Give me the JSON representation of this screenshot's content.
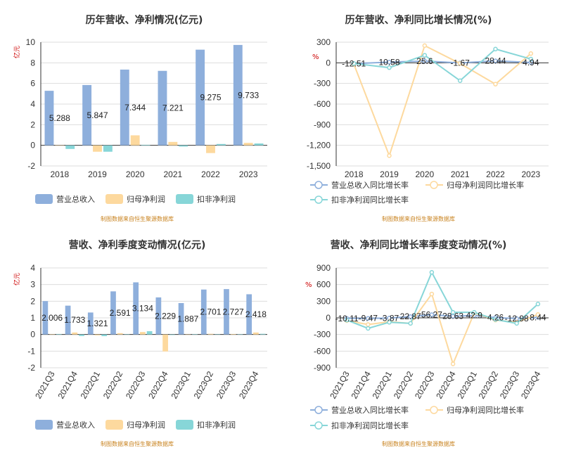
{
  "colors": {
    "revenue": "#8eafdc",
    "net_profit": "#fdd99e",
    "deducted_profit": "#87d6d8",
    "axis": "#333333",
    "grid": "#dddddd"
  },
  "source_note": "制图数据来自恒生聚源数据库",
  "chart_data": [
    {
      "id": "annual_amounts",
      "type": "bar",
      "title": "历年营收、净利情况(亿元)",
      "ylabel": "亿元",
      "ylim": [
        -2,
        10
      ],
      "yticks": [
        10,
        8,
        6,
        4,
        2,
        0,
        -2
      ],
      "categories": [
        "2018",
        "2019",
        "2020",
        "2021",
        "2022",
        "2023"
      ],
      "series": [
        {
          "name": "营业总收入",
          "values": [
            5.288,
            5.847,
            7.344,
            7.221,
            9.275,
            9.733
          ]
        },
        {
          "name": "归母净利润",
          "values": [
            -0.02,
            -0.62,
            0.97,
            0.33,
            -0.75,
            0.24
          ]
        },
        {
          "name": "扣非净利润",
          "values": [
            -0.35,
            -0.62,
            0.05,
            -0.12,
            0.13,
            0.18
          ]
        }
      ],
      "data_labels": [
        "5.288",
        "5.847",
        "7.344",
        "7.221",
        "9.275",
        "9.733"
      ],
      "legend": "bottom"
    },
    {
      "id": "annual_growth",
      "type": "line",
      "title": "历年营收、净利同比增长情况(%)",
      "ylabel": "%",
      "ylim": [
        -1500,
        300
      ],
      "yticks": [
        "300",
        "0",
        "-300",
        "-600",
        "-900",
        "-1,200",
        "-1,500"
      ],
      "ytick_values": [
        300,
        0,
        -300,
        -600,
        -900,
        -1200,
        -1500
      ],
      "categories": [
        "2018",
        "2019",
        "2020",
        "2021",
        "2022",
        "2023"
      ],
      "series": [
        {
          "name": "营业总收入同比增长率",
          "values": [
            -12.51,
            10.58,
            25.6,
            -1.67,
            28.44,
            4.94
          ]
        },
        {
          "name": "归母净利润同比增长率",
          "values": [
            -20,
            -1350,
            250,
            -10,
            -310,
            135
          ]
        },
        {
          "name": "扣非净利润同比增长率",
          "values": [
            -10,
            -70,
            110,
            -260,
            200,
            55
          ]
        }
      ],
      "data_labels": [
        "-12.51",
        "10.58",
        "25.6",
        "-1.67",
        "28.44",
        "4.94"
      ],
      "legend": "bottom"
    },
    {
      "id": "quarterly_amounts",
      "type": "bar",
      "title": "营收、净利季度变动情况(亿元)",
      "ylabel": "亿元",
      "ylim": [
        -2,
        4
      ],
      "yticks": [
        4,
        3,
        2,
        1,
        0,
        -1,
        -2
      ],
      "categories": [
        "2021Q3",
        "2021Q4",
        "2022Q1",
        "2022Q2",
        "2022Q3",
        "2022Q4",
        "2023Q1",
        "2023Q2",
        "2023Q3",
        "2023Q4"
      ],
      "series": [
        {
          "name": "营业总收入",
          "values": [
            2.006,
            1.733,
            1.321,
            2.591,
            3.134,
            2.229,
            1.887,
            2.701,
            2.727,
            2.418
          ]
        },
        {
          "name": "归母净利润",
          "values": [
            0.02,
            0.12,
            -0.05,
            0.08,
            0.15,
            -1.02,
            0.0,
            0.04,
            0.03,
            0.12
          ]
        },
        {
          "name": "扣非净利润",
          "values": [
            0.03,
            -0.09,
            -0.1,
            0.02,
            0.2,
            -0.03,
            0.01,
            0.02,
            0.01,
            0.04
          ]
        }
      ],
      "data_labels": [
        "2.006",
        "1.733",
        "1.321",
        "2.591",
        "3.134",
        "2.229",
        "1.887",
        "2.701",
        "2.727",
        "2.418"
      ],
      "legend": "bottom"
    },
    {
      "id": "quarterly_growth",
      "type": "line",
      "title": "营收、净利同比增长率季度变动情况(%)",
      "ylabel": "%",
      "ylim": [
        -900,
        900
      ],
      "yticks": [
        "900",
        "600",
        "300",
        "0",
        "-300",
        "-600",
        "-900"
      ],
      "ytick_values": [
        900,
        600,
        300,
        0,
        -300,
        -600,
        -900
      ],
      "categories": [
        "2021Q3",
        "2021Q4",
        "2022Q1",
        "2022Q2",
        "2022Q3",
        "2022Q4",
        "2023Q1",
        "2023Q2",
        "2023Q3",
        "2023Q4"
      ],
      "series": [
        {
          "name": "营业总收入同比增长率",
          "values": [
            -10.11,
            -9.47,
            -3.87,
            22.87,
            56.27,
            28.63,
            42.9,
            4.26,
            -12.98,
            8.44
          ]
        },
        {
          "name": "归母净利润同比增长率",
          "values": [
            -50,
            -120,
            -70,
            -100,
            430,
            -830,
            90,
            -40,
            -80,
            60
          ]
        },
        {
          "name": "扣非净利润同比增长率",
          "values": [
            -40,
            -190,
            -80,
            -100,
            820,
            100,
            100,
            -30,
            -100,
            250
          ]
        }
      ],
      "data_labels": [
        "-10.11",
        "-9.47",
        "-3.87",
        "22.87",
        "56.27",
        "28.63",
        "42.9",
        "4.26",
        "-12.98",
        "8.44"
      ],
      "legend": "bottom"
    }
  ]
}
